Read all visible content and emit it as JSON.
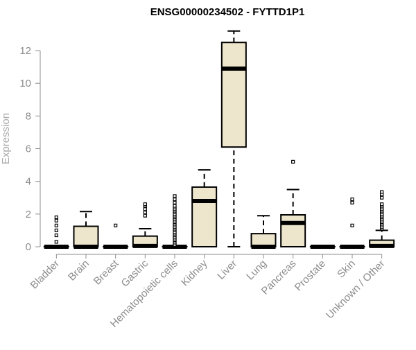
{
  "chart_data": {
    "type": "boxplot",
    "title": "ENSG00000234502 - FYTTD1P1",
    "xlabel": "",
    "ylabel": "Expression",
    "ylim": [
      0,
      13.4
    ],
    "yticks": [
      0,
      2,
      4,
      6,
      8,
      10,
      12
    ],
    "grid": false,
    "legend": "none",
    "box_fill": "#ede6cc",
    "box_stroke": "#000000",
    "categories": [
      "Bladder",
      "Brain",
      "Breast",
      "Gastric",
      "Hematopoietic cells",
      "Kidney",
      "Liver",
      "Lung",
      "Pancreas",
      "Prostate",
      "Skin",
      "Unknown / Other"
    ],
    "boxes": [
      {
        "category": "Bladder",
        "min": 0,
        "q1": 0,
        "median": 0,
        "q3": 0,
        "max": 0,
        "outliers": [
          0.3,
          0.7,
          1.0,
          1.3,
          1.6,
          1.8
        ]
      },
      {
        "category": "Brain",
        "min": 0,
        "q1": 0,
        "median": 0,
        "q3": 1.25,
        "max": 2.15,
        "outliers": []
      },
      {
        "category": "Breast",
        "min": 0,
        "q1": 0,
        "median": 0,
        "q3": 0,
        "max": 0,
        "outliers": [
          1.3
        ]
      },
      {
        "category": "Gastric",
        "min": 0,
        "q1": 0,
        "median": 0.05,
        "q3": 0.65,
        "max": 1.1,
        "outliers": [
          1.9,
          2.1,
          2.3,
          2.5,
          2.6
        ]
      },
      {
        "category": "Hematopoietic cells",
        "min": 0,
        "q1": 0,
        "median": 0,
        "q3": 0,
        "max": 0,
        "outliers": [
          0.1,
          0.2,
          0.3,
          0.4,
          0.5,
          0.6,
          0.7,
          0.8,
          0.9,
          1.0,
          1.1,
          1.2,
          1.3,
          1.4,
          1.5,
          1.6,
          1.7,
          1.8,
          1.9,
          2.0,
          2.1,
          2.2,
          2.3,
          2.4,
          2.5,
          2.7,
          2.9,
          3.1
        ]
      },
      {
        "category": "Kidney",
        "min": 0,
        "q1": 0,
        "median": 2.8,
        "q3": 3.65,
        "max": 4.7,
        "outliers": []
      },
      {
        "category": "Liver",
        "min": 0,
        "q1": 6.1,
        "median": 10.9,
        "q3": 12.5,
        "max": 13.2,
        "outliers": []
      },
      {
        "category": "Lung",
        "min": 0,
        "q1": 0,
        "median": 0,
        "q3": 0.8,
        "max": 1.9,
        "outliers": []
      },
      {
        "category": "Pancreas",
        "min": 0,
        "q1": 0,
        "median": 1.45,
        "q3": 1.95,
        "max": 3.5,
        "outliers": [
          5.2
        ]
      },
      {
        "category": "Prostate",
        "min": 0,
        "q1": 0,
        "median": 0,
        "q3": 0,
        "max": 0,
        "outliers": []
      },
      {
        "category": "Skin",
        "min": 0,
        "q1": 0,
        "median": 0,
        "q3": 0,
        "max": 0,
        "outliers": [
          1.3,
          2.7,
          2.9
        ]
      },
      {
        "category": "Unknown / Other",
        "min": 0,
        "q1": 0,
        "median": 0.05,
        "q3": 0.4,
        "max": 1.0,
        "outliers": [
          1.1,
          1.2,
          1.3,
          1.4,
          1.5,
          1.6,
          1.7,
          1.8,
          1.9,
          2.0,
          2.1,
          2.2,
          2.3,
          2.4,
          2.5,
          2.6,
          3.0,
          3.2,
          3.35
        ]
      }
    ]
  }
}
